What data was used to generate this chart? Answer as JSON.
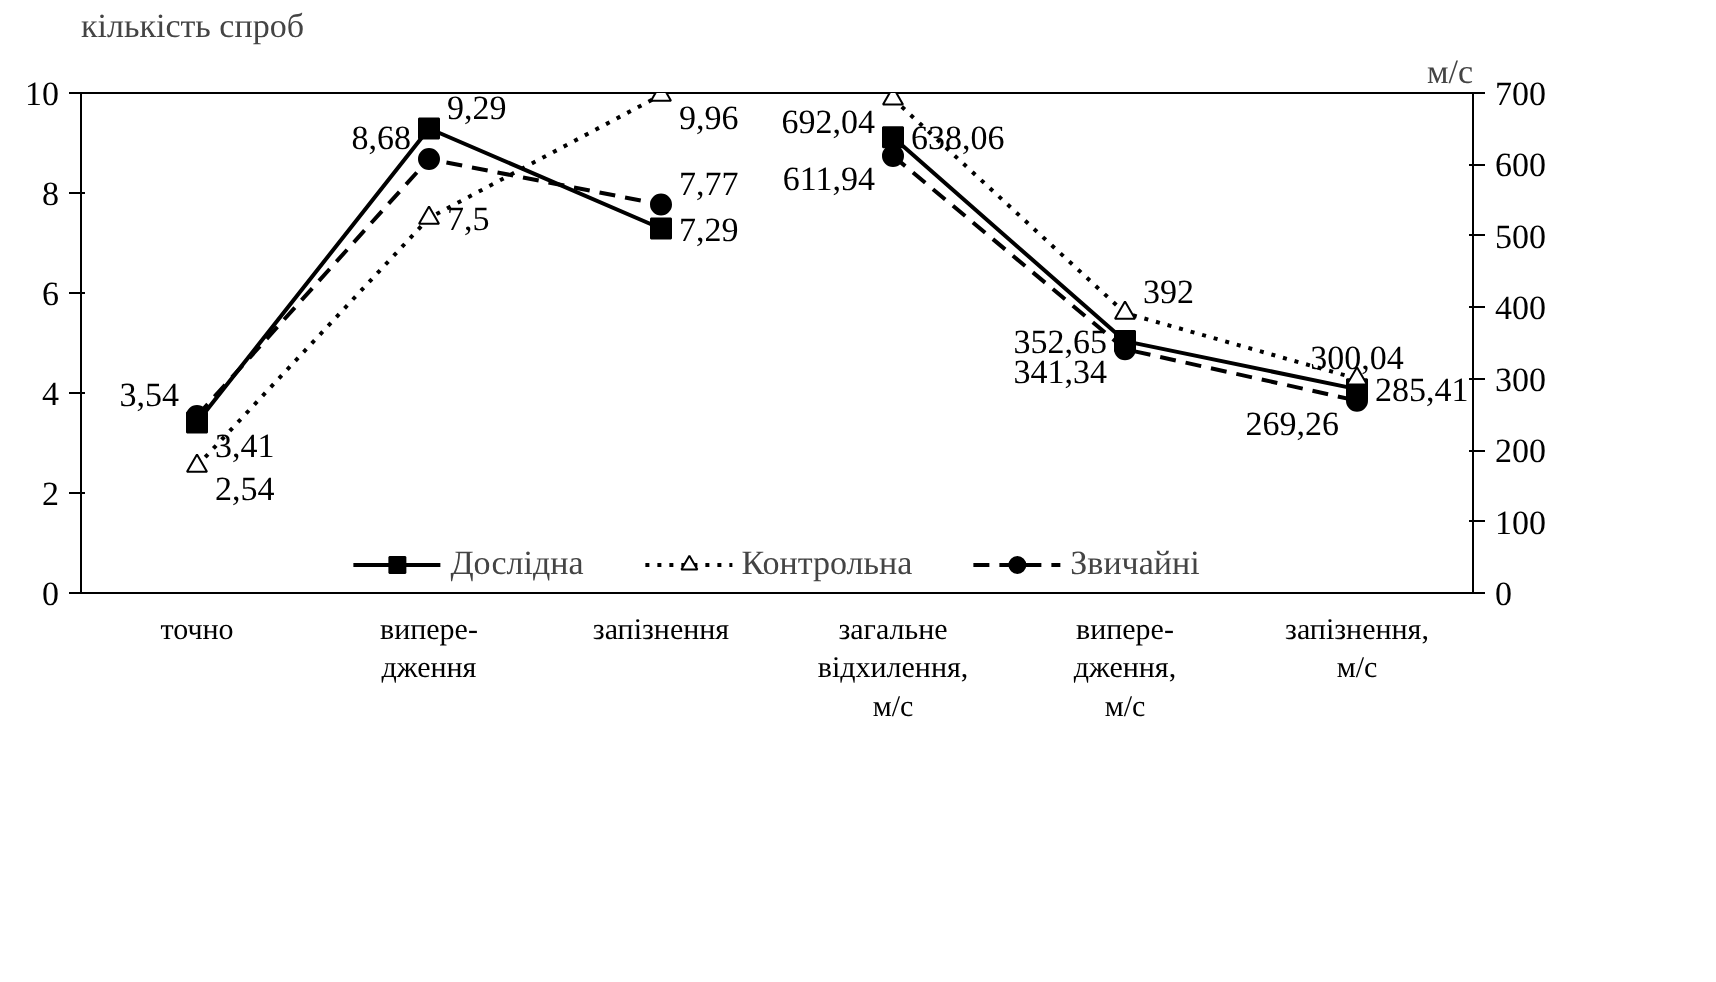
{
  "chart_data": {
    "type": "line",
    "ylabel": "кількість спроб",
    "y2label": "м/с",
    "categories": [
      "точно",
      "випере-\nдження",
      "запізнення",
      "загальне\nвідхилення,\nм/с",
      "випере-\nдження,\nм/с",
      "запізнення,\nм/с"
    ],
    "ylim": [
      0,
      10
    ],
    "yticks": [
      0,
      2,
      4,
      6,
      8,
      10
    ],
    "y2lim": [
      0,
      700
    ],
    "y2ticks": [
      0,
      100,
      200,
      300,
      400,
      500,
      600,
      700
    ],
    "grid": false,
    "legend": "bottom",
    "series": [
      {
        "name": "Дослідна",
        "color": "#000000",
        "marker": "square",
        "line_style": "solid",
        "values": [
          3.41,
          9.29,
          7.29,
          null,
          null,
          null
        ],
        "value_labels": [
          "3,41",
          "9,29",
          "7,29",
          null,
          null,
          null
        ]
      },
      {
        "name": "Контрольна",
        "color": "#000000",
        "marker": "triangle",
        "line_style": "dotted",
        "values": [
          2.54,
          7.5,
          9.96,
          null,
          null,
          null
        ],
        "value_labels": [
          "2,54",
          "7,5",
          "9,96",
          null,
          null,
          null
        ]
      },
      {
        "name": "Звичайні",
        "color": "#000000",
        "marker": "circle",
        "line_style": "dashed",
        "values": [
          3.54,
          8.68,
          7.77,
          null,
          null,
          null
        ],
        "value_labels": [
          "3,54",
          "8,68",
          "7,77",
          null,
          null,
          null
        ]
      },
      {
        "color": "#000000",
        "marker": "square",
        "line_style": "solid",
        "axis": "y2",
        "values": [
          null,
          null,
          null,
          638.06,
          352.65,
          285.41
        ],
        "value_labels": [
          null,
          null,
          null,
          "638,06",
          "352,65",
          "285,41"
        ]
      },
      {
        "color": "#000000",
        "marker": "triangle",
        "line_style": "dotted",
        "axis": "y2",
        "values": [
          null,
          null,
          null,
          692.04,
          392,
          300.04
        ],
        "value_labels": [
          null,
          null,
          null,
          "692,04",
          "392",
          "300,04"
        ]
      },
      {
        "color": "#000000",
        "marker": "circle",
        "line_style": "dashed",
        "axis": "y2",
        "values": [
          null,
          null,
          null,
          611.94,
          341.34,
          269.26
        ],
        "value_labels": [
          null,
          null,
          null,
          "611,94",
          "341,34",
          "269,26"
        ]
      }
    ]
  }
}
